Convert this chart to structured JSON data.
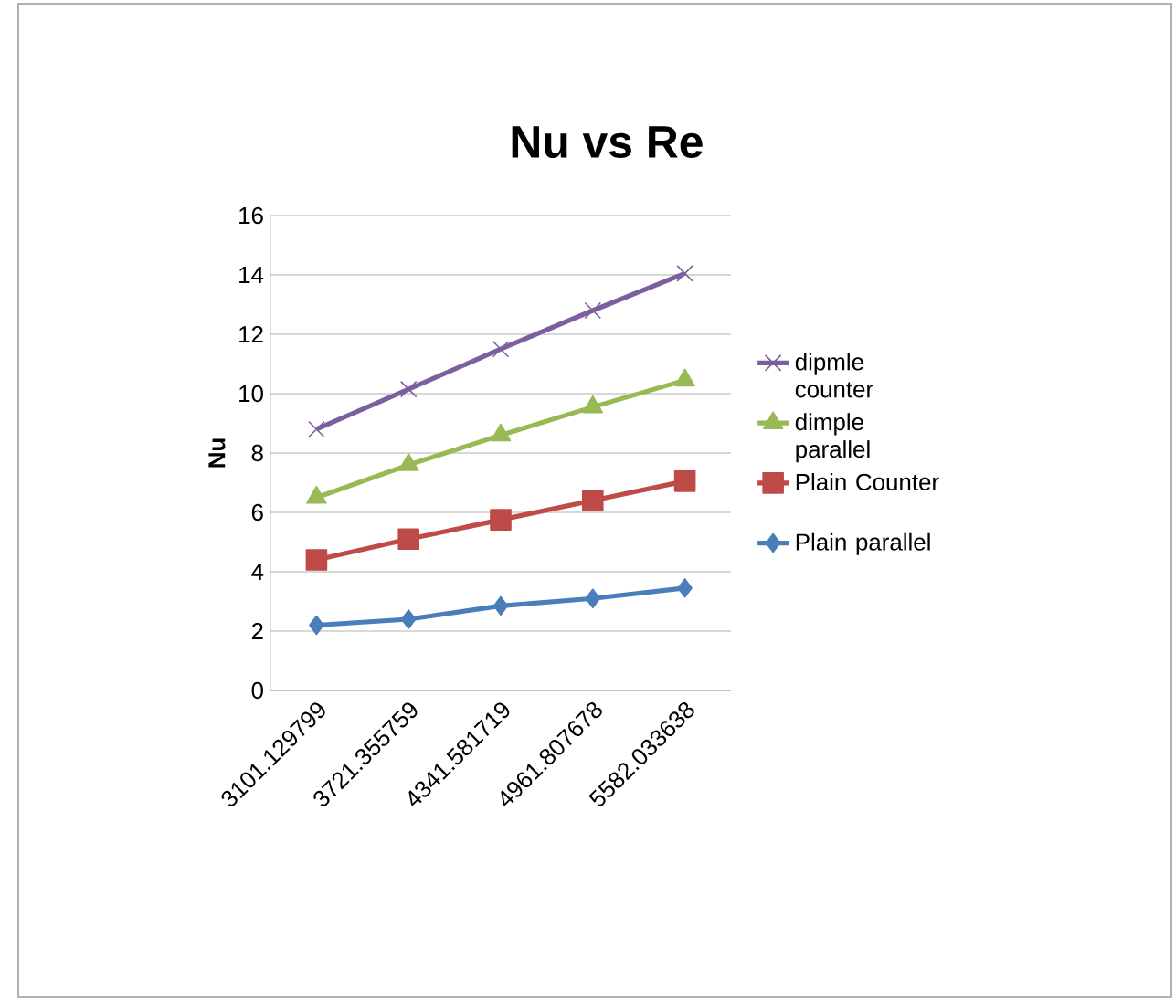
{
  "chart_data": {
    "type": "line",
    "title": "Nu vs Re",
    "ylabel": "Nu",
    "categories": [
      "3101.129799",
      "3721.355759",
      "4341.581719",
      "4961.807678",
      "5582.033638"
    ],
    "series": [
      {
        "name": "Plain parallel",
        "color": "#4a7ebb",
        "marker": "diamond",
        "values": [
          2.2,
          2.4,
          2.85,
          3.1,
          3.45
        ]
      },
      {
        "name": "Plain Counter",
        "color": "#be4b48",
        "marker": "square",
        "values": [
          4.4,
          5.1,
          5.75,
          6.4,
          7.05
        ]
      },
      {
        "name": "dimple parallel",
        "color": "#98b954",
        "marker": "triangle",
        "values": [
          6.5,
          7.6,
          8.6,
          9.55,
          10.45
        ]
      },
      {
        "name": "dipmle counter",
        "color": "#7d5fa0",
        "marker": "cross",
        "values": [
          8.8,
          10.15,
          11.5,
          12.8,
          14.05
        ]
      }
    ],
    "ylim": [
      0,
      16
    ],
    "yticks": [
      0,
      2,
      4,
      6,
      8,
      10,
      12,
      14,
      16
    ],
    "grid": "y",
    "legend": "right"
  }
}
